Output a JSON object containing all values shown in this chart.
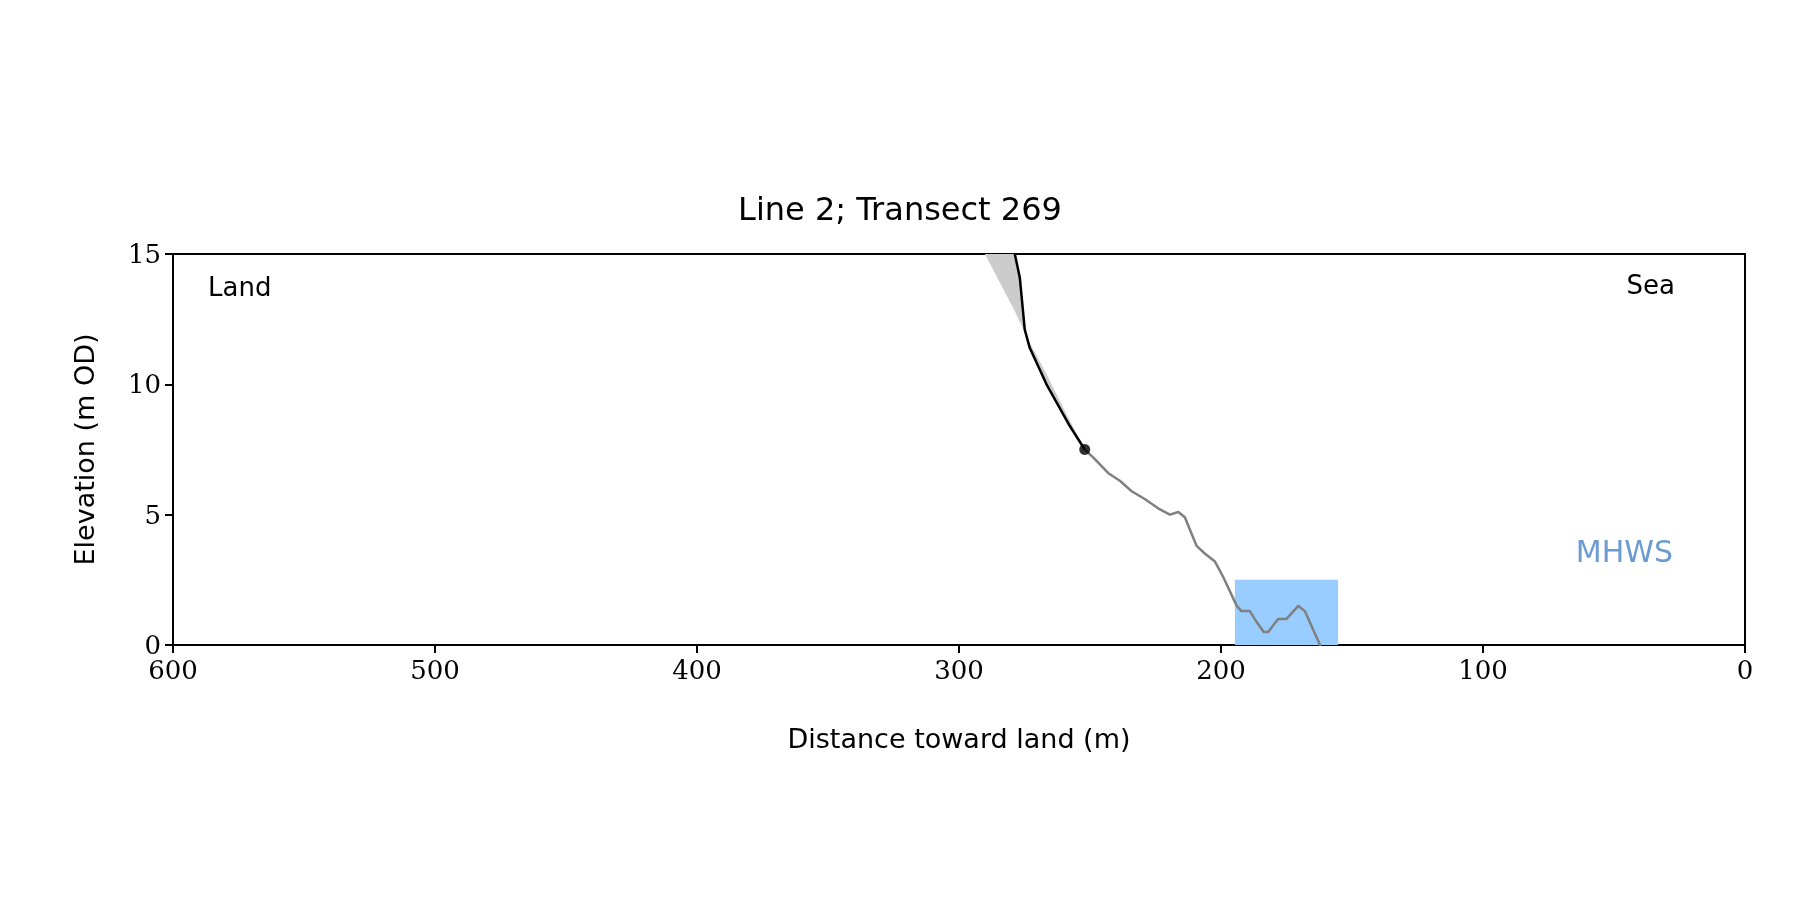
{
  "chart_data": {
    "type": "line",
    "title": "Line 2; Transect 269",
    "xlabel": "Distance toward land (m)",
    "ylabel": "Elevation (m OD)",
    "xlim": [
      600,
      0
    ],
    "xticks": [
      600,
      500,
      400,
      300,
      200,
      100,
      0
    ],
    "ylim": [
      0,
      15
    ],
    "yticks": [
      0,
      5,
      10,
      15
    ],
    "grid": false,
    "series": [
      {
        "type": "area",
        "color": "#99ccff",
        "x": [
          194.7,
          155.3
        ],
        "values": [
          2.5,
          2.5
        ]
      },
      {
        "color": "#000000",
        "x": [
          290.1,
          278.7,
          276.8,
          274.9,
          273,
          266.6,
          257.7,
          252
        ],
        "values": [
          null,
          15,
          14.1,
          12.1,
          11.4,
          10,
          8.4,
          7.5
        ],
        "lower": [
          15,
          12.8,
          12.4,
          12,
          11.6,
          10.4,
          8.6,
          7.5
        ],
        "upper": [
          15,
          15,
          14.1,
          12.1,
          11.4,
          10,
          8.4,
          7.5
        ]
      },
      {
        "color": "#808080",
        "x": [
          252,
          248.8,
          243.1,
          238.6,
          234.1,
          229.1,
          223.3,
          219.5,
          216.3,
          213.8,
          209.3,
          206.1,
          202.3,
          199.1,
          194,
          192.2,
          189,
          186.5,
          183.7,
          182,
          178.2,
          175,
          170.5,
          168,
          162.2
        ],
        "values": [
          7.5,
          7.2,
          6.6,
          6.3,
          5.9,
          5.6,
          5.2,
          5,
          5.1,
          4.9,
          3.8,
          3.5,
          3.2,
          2.6,
          1.5,
          1.3,
          1.3,
          0.9,
          0.5,
          0.5,
          1,
          1,
          1.5,
          1.3,
          0
        ]
      },
      {
        "type": "scatter",
        "marker": "circle",
        "color": "#000000",
        "x": [
          252
        ],
        "values": [
          7.5
        ]
      }
    ],
    "annotations": [
      "Land",
      "Sea",
      "MHWS"
    ]
  }
}
